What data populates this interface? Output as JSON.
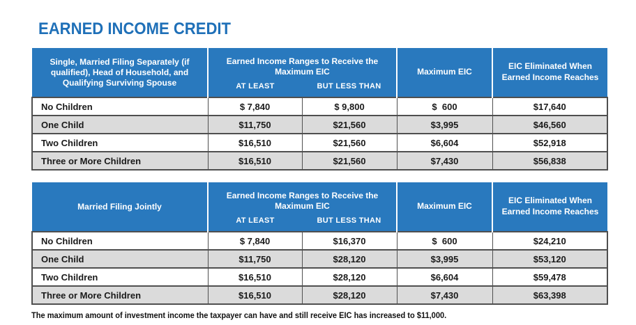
{
  "page": {
    "title": "EARNED INCOME CREDIT",
    "footnote": "The maximum amount of investment income the taxpayer can have and still receive EIC has increased to $11,000."
  },
  "colors": {
    "header_blue": "#2979BE",
    "title_blue": "#1F70B8",
    "row_alt_grey": "#DBDBDB",
    "border_dark": "#4F4F4F"
  },
  "columns": {
    "range_group_label": "Earned Income Ranges to Receive the Maximum EIC",
    "at_least": "AT LEAST",
    "but_less_than": "BUT LESS THAN",
    "maximum_eic": "Maximum EIC",
    "eic_eliminated": "EIC Eliminated When Earned Income Reaches"
  },
  "tables": [
    {
      "filing_status_header": "Single, Married Filing Separately (if qualified), Head of Household, and Qualifying Surviving Spouse",
      "rows": [
        {
          "label": "No Children",
          "at_least": "$ 7,840",
          "but_less_than": "$ 9,800",
          "maximum_eic": "$  600",
          "eliminated_at": "$17,640"
        },
        {
          "label": "One Child",
          "at_least": "$11,750",
          "but_less_than": "$21,560",
          "maximum_eic": "$3,995",
          "eliminated_at": "$46,560"
        },
        {
          "label": "Two Children",
          "at_least": "$16,510",
          "but_less_than": "$21,560",
          "maximum_eic": "$6,604",
          "eliminated_at": "$52,918"
        },
        {
          "label": "Three or More Children",
          "at_least": "$16,510",
          "but_less_than": "$21,560",
          "maximum_eic": "$7,430",
          "eliminated_at": "$56,838"
        }
      ]
    },
    {
      "filing_status_header": "Married Filing Jointly",
      "rows": [
        {
          "label": "No Children",
          "at_least": "$ 7,840",
          "but_less_than": "$16,370",
          "maximum_eic": "$  600",
          "eliminated_at": "$24,210"
        },
        {
          "label": "One Child",
          "at_least": "$11,750",
          "but_less_than": "$28,120",
          "maximum_eic": "$3,995",
          "eliminated_at": "$53,120"
        },
        {
          "label": "Two Children",
          "at_least": "$16,510",
          "but_less_than": "$28,120",
          "maximum_eic": "$6,604",
          "eliminated_at": "$59,478"
        },
        {
          "label": "Three or More Children",
          "at_least": "$16,510",
          "but_less_than": "$28,120",
          "maximum_eic": "$7,430",
          "eliminated_at": "$63,398"
        }
      ]
    }
  ]
}
